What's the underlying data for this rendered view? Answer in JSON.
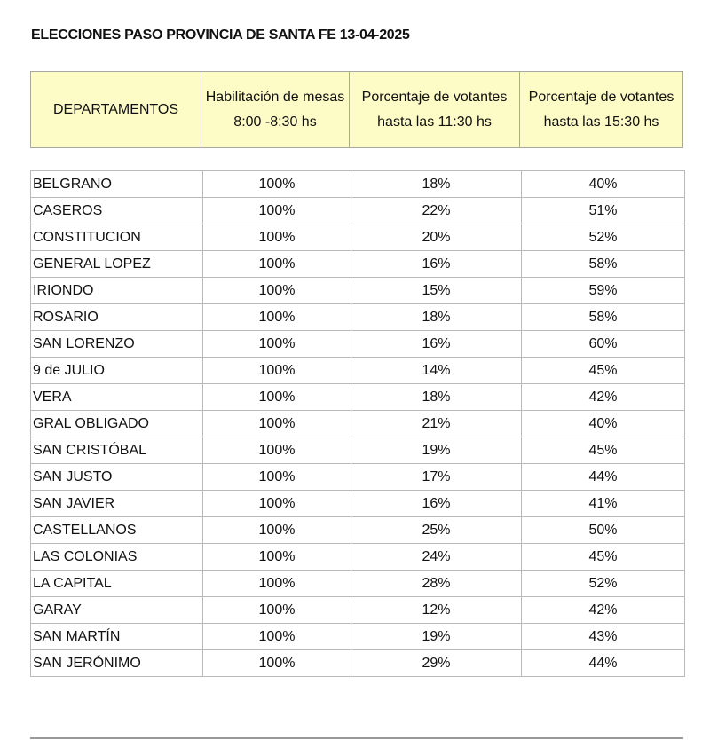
{
  "title": "ELECCIONES PASO PROVINCIA DE SANTA FE 13-04-2025",
  "columns": [
    "DEPARTAMENTOS",
    "Habilitación de mesas 8:00 -8:30 hs",
    "Porcentaje de votantes hasta las 11:30 hs",
    "Porcentaje de votantes hasta las 15:30 hs"
  ],
  "header_color": "#fdfbc6",
  "rows": [
    [
      "BELGRANO",
      "100%",
      "18%",
      "40%"
    ],
    [
      "CASEROS",
      "100%",
      "22%",
      "51%"
    ],
    [
      "CONSTITUCION",
      "100%",
      "20%",
      "52%"
    ],
    [
      "GENERAL LOPEZ",
      "100%",
      "16%",
      "58%"
    ],
    [
      "IRIONDO",
      "100%",
      "15%",
      "59%"
    ],
    [
      "ROSARIO",
      "100%",
      "18%",
      "58%"
    ],
    [
      "SAN LORENZO",
      "100%",
      "16%",
      "60%"
    ],
    [
      "9 de JULIO",
      "100%",
      "14%",
      "45%"
    ],
    [
      "VERA",
      "100%",
      "18%",
      "42%"
    ],
    [
      "GRAL OBLIGADO",
      "100%",
      "21%",
      "40%"
    ],
    [
      "SAN CRISTÓBAL",
      "100%",
      "19%",
      "45%"
    ],
    [
      "SAN JUSTO",
      "100%",
      "17%",
      "44%"
    ],
    [
      "SAN JAVIER",
      "100%",
      "16%",
      "41%"
    ],
    [
      "CASTELLANOS",
      "100%",
      "25%",
      "50%"
    ],
    [
      "LAS COLONIAS",
      "100%",
      "24%",
      "45%"
    ],
    [
      "LA CAPITAL",
      "100%",
      "28%",
      "52%"
    ],
    [
      "GARAY",
      "100%",
      "12%",
      "42%"
    ],
    [
      "SAN MARTÍN",
      "100%",
      "19%",
      "43%"
    ],
    [
      "SAN JERÓNIMO",
      "100%",
      "29%",
      "44%"
    ]
  ]
}
